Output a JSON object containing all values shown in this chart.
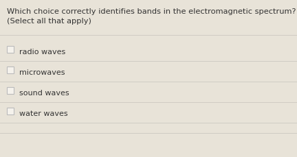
{
  "title_line1": "Which choice correctly identifies bands in the electromagnetic spectrum?",
  "title_line2": "(Select all that apply)",
  "options": [
    "radio waves",
    "microwaves",
    "sound waves",
    "water waves"
  ],
  "bg_color": "#e8e3d8",
  "text_color": "#333333",
  "checkbox_color": "#f5f2ec",
  "checkbox_border": "#bbbbbb",
  "line_color": "#d0ccc4",
  "title_fontsize": 8.2,
  "option_fontsize": 8.0
}
